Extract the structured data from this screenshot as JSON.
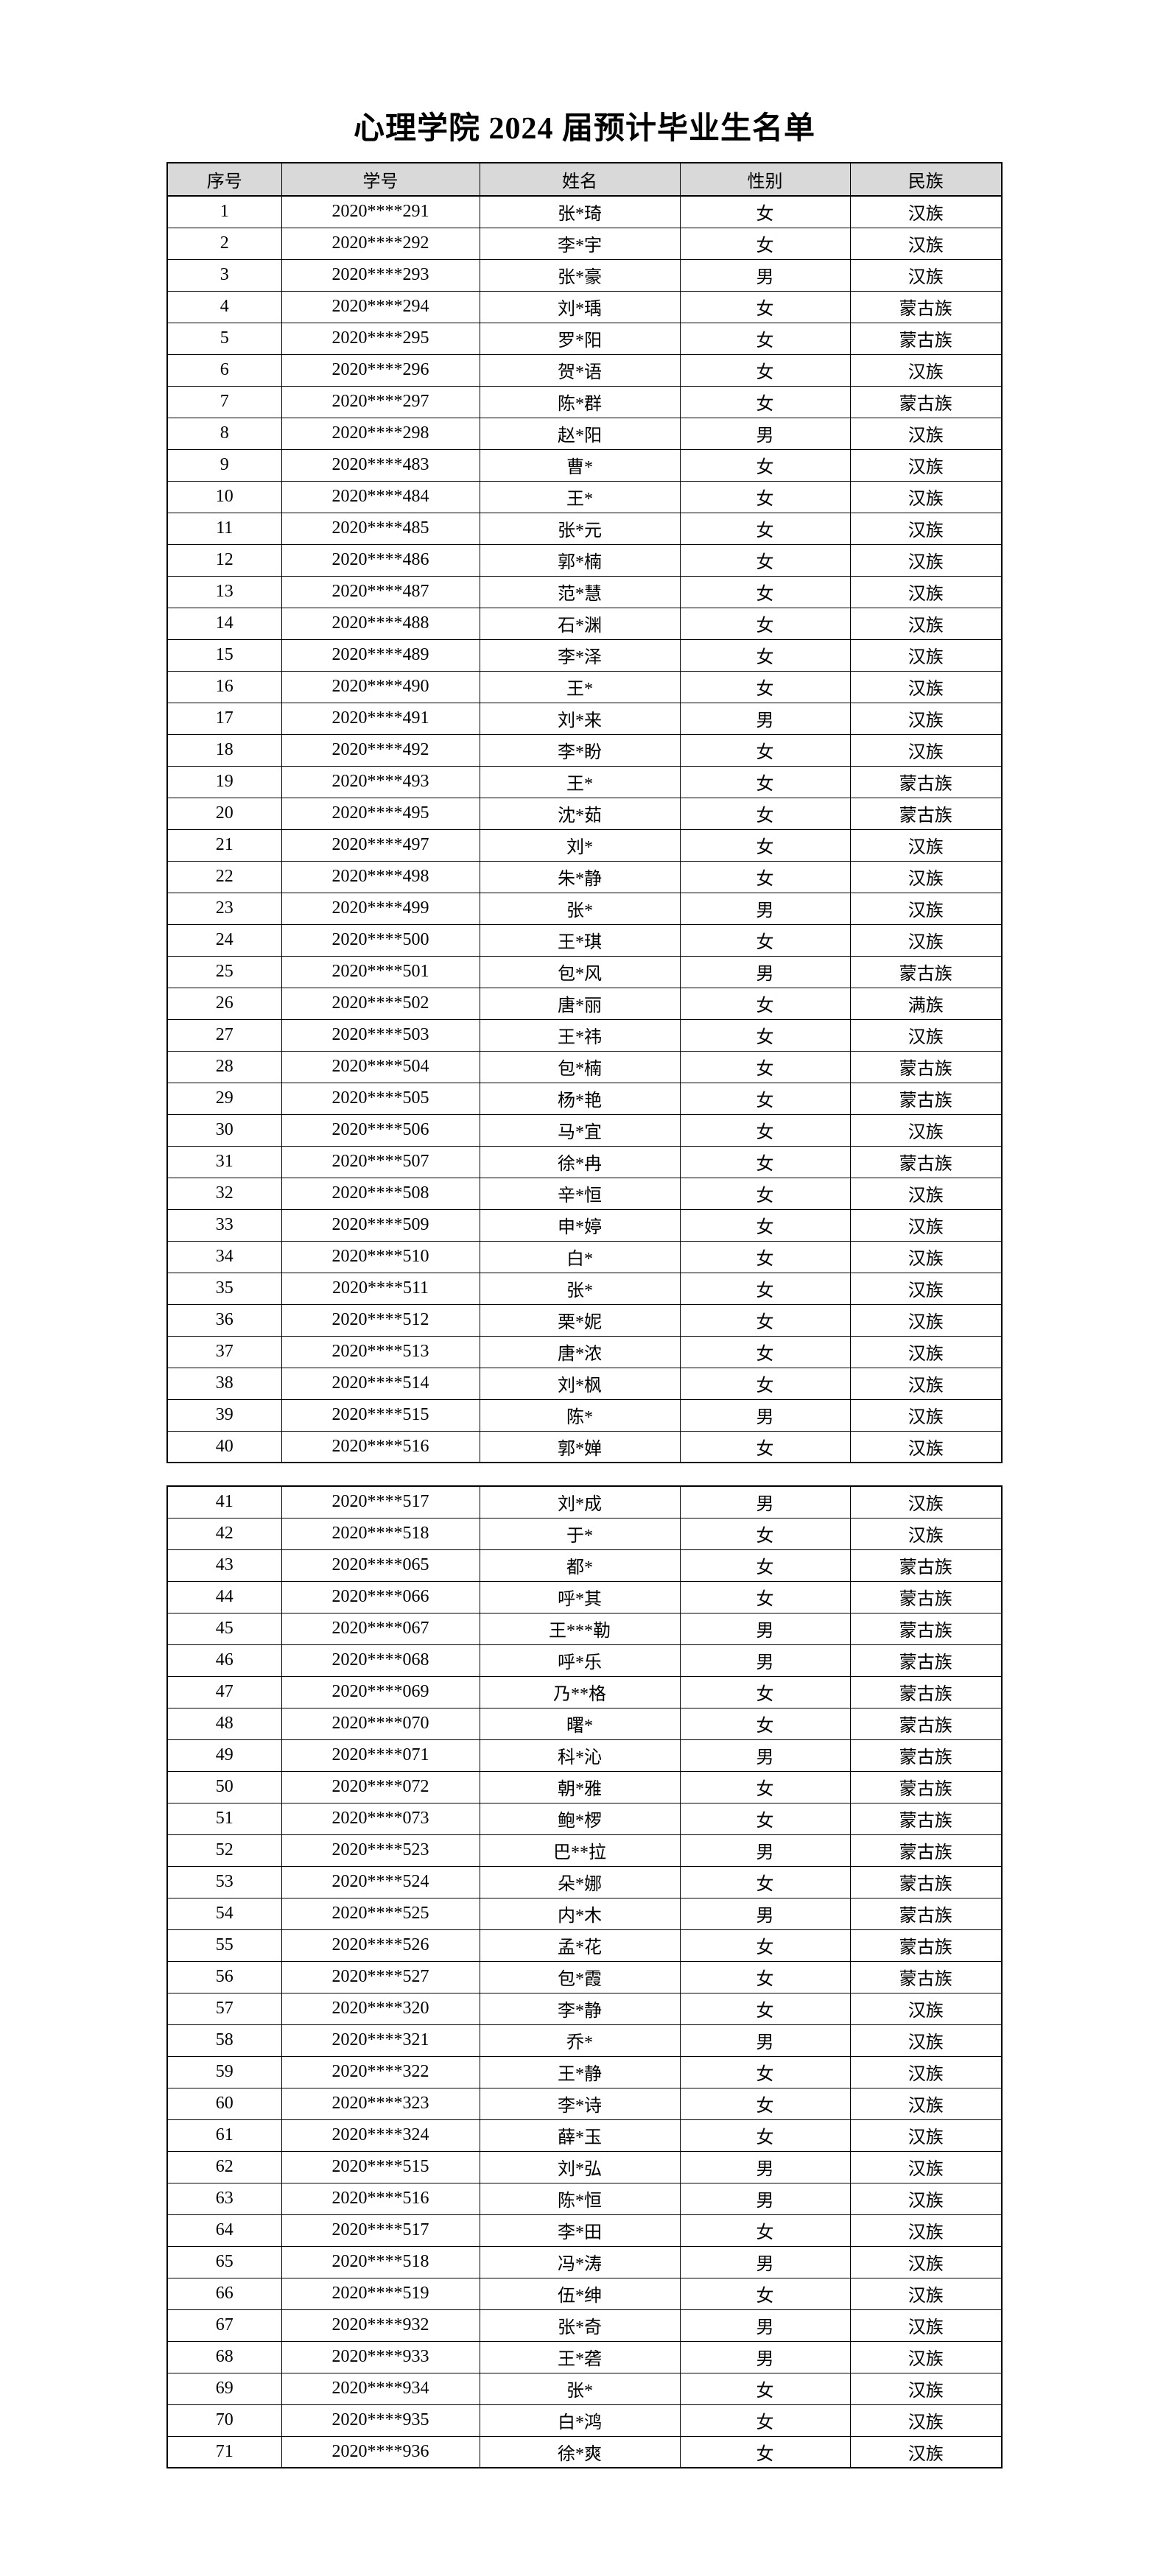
{
  "title": "心理学院 2024 届预计毕业生名单",
  "columns": [
    "序号",
    "学号",
    "姓名",
    "性别",
    "民族"
  ],
  "header_bg": "#d9d9d9",
  "tables": [
    {
      "rows": [
        [
          "1",
          "2020****291",
          "张*琦",
          "女",
          "汉族"
        ],
        [
          "2",
          "2020****292",
          "李*宇",
          "女",
          "汉族"
        ],
        [
          "3",
          "2020****293",
          "张*豪",
          "男",
          "汉族"
        ],
        [
          "4",
          "2020****294",
          "刘*瑀",
          "女",
          "蒙古族"
        ],
        [
          "5",
          "2020****295",
          "罗*阳",
          "女",
          "蒙古族"
        ],
        [
          "6",
          "2020****296",
          "贺*语",
          "女",
          "汉族"
        ],
        [
          "7",
          "2020****297",
          "陈*群",
          "女",
          "蒙古族"
        ],
        [
          "8",
          "2020****298",
          "赵*阳",
          "男",
          "汉族"
        ],
        [
          "9",
          "2020****483",
          "曹*",
          "女",
          "汉族"
        ],
        [
          "10",
          "2020****484",
          "王*",
          "女",
          "汉族"
        ],
        [
          "11",
          "2020****485",
          "张*元",
          "女",
          "汉族"
        ],
        [
          "12",
          "2020****486",
          "郭*楠",
          "女",
          "汉族"
        ],
        [
          "13",
          "2020****487",
          "范*慧",
          "女",
          "汉族"
        ],
        [
          "14",
          "2020****488",
          "石*渊",
          "女",
          "汉族"
        ],
        [
          "15",
          "2020****489",
          "李*泽",
          "女",
          "汉族"
        ],
        [
          "16",
          "2020****490",
          "王*",
          "女",
          "汉族"
        ],
        [
          "17",
          "2020****491",
          "刘*来",
          "男",
          "汉族"
        ],
        [
          "18",
          "2020****492",
          "李*盼",
          "女",
          "汉族"
        ],
        [
          "19",
          "2020****493",
          "王*",
          "女",
          "蒙古族"
        ],
        [
          "20",
          "2020****495",
          "沈*茹",
          "女",
          "蒙古族"
        ],
        [
          "21",
          "2020****497",
          "刘*",
          "女",
          "汉族"
        ],
        [
          "22",
          "2020****498",
          "朱*静",
          "女",
          "汉族"
        ],
        [
          "23",
          "2020****499",
          "张*",
          "男",
          "汉族"
        ],
        [
          "24",
          "2020****500",
          "王*琪",
          "女",
          "汉族"
        ],
        [
          "25",
          "2020****501",
          "包*风",
          "男",
          "蒙古族"
        ],
        [
          "26",
          "2020****502",
          "唐*丽",
          "女",
          "满族"
        ],
        [
          "27",
          "2020****503",
          "王*祎",
          "女",
          "汉族"
        ],
        [
          "28",
          "2020****504",
          "包*楠",
          "女",
          "蒙古族"
        ],
        [
          "29",
          "2020****505",
          "杨*艳",
          "女",
          "蒙古族"
        ],
        [
          "30",
          "2020****506",
          "马*宜",
          "女",
          "汉族"
        ],
        [
          "31",
          "2020****507",
          "徐*冉",
          "女",
          "蒙古族"
        ],
        [
          "32",
          "2020****508",
          "辛*恒",
          "女",
          "汉族"
        ],
        [
          "33",
          "2020****509",
          "申*婷",
          "女",
          "汉族"
        ],
        [
          "34",
          "2020****510",
          "白*",
          "女",
          "汉族"
        ],
        [
          "35",
          "2020****511",
          "张*",
          "女",
          "汉族"
        ],
        [
          "36",
          "2020****512",
          "栗*妮",
          "女",
          "汉族"
        ],
        [
          "37",
          "2020****513",
          "唐*浓",
          "女",
          "汉族"
        ],
        [
          "38",
          "2020****514",
          "刘*枫",
          "女",
          "汉族"
        ],
        [
          "39",
          "2020****515",
          "陈*",
          "男",
          "汉族"
        ],
        [
          "40",
          "2020****516",
          "郭*婵",
          "女",
          "汉族"
        ]
      ]
    },
    {
      "rows": [
        [
          "41",
          "2020****517",
          "刘*成",
          "男",
          "汉族"
        ],
        [
          "42",
          "2020****518",
          "于*",
          "女",
          "汉族"
        ],
        [
          "43",
          "2020****065",
          "都*",
          "女",
          "蒙古族"
        ],
        [
          "44",
          "2020****066",
          "呼*其",
          "女",
          "蒙古族"
        ],
        [
          "45",
          "2020****067",
          "王***勒",
          "男",
          "蒙古族"
        ],
        [
          "46",
          "2020****068",
          "呼*乐",
          "男",
          "蒙古族"
        ],
        [
          "47",
          "2020****069",
          "乃**格",
          "女",
          "蒙古族"
        ],
        [
          "48",
          "2020****070",
          "曙*",
          "女",
          "蒙古族"
        ],
        [
          "49",
          "2020****071",
          "科*沁",
          "男",
          "蒙古族"
        ],
        [
          "50",
          "2020****072",
          "朝*雅",
          "女",
          "蒙古族"
        ],
        [
          "51",
          "2020****073",
          "鲍*椤",
          "女",
          "蒙古族"
        ],
        [
          "52",
          "2020****523",
          "巴**拉",
          "男",
          "蒙古族"
        ],
        [
          "53",
          "2020****524",
          "朵*娜",
          "女",
          "蒙古族"
        ],
        [
          "54",
          "2020****525",
          "内*木",
          "男",
          "蒙古族"
        ],
        [
          "55",
          "2020****526",
          "孟*花",
          "女",
          "蒙古族"
        ],
        [
          "56",
          "2020****527",
          "包*霞",
          "女",
          "蒙古族"
        ],
        [
          "57",
          "2020****320",
          "李*静",
          "女",
          "汉族"
        ],
        [
          "58",
          "2020****321",
          "乔*",
          "男",
          "汉族"
        ],
        [
          "59",
          "2020****322",
          "王*静",
          "女",
          "汉族"
        ],
        [
          "60",
          "2020****323",
          "李*诗",
          "女",
          "汉族"
        ],
        [
          "61",
          "2020****324",
          "薛*玉",
          "女",
          "汉族"
        ],
        [
          "62",
          "2020****515",
          "刘*弘",
          "男",
          "汉族"
        ],
        [
          "63",
          "2020****516",
          "陈*恒",
          "男",
          "汉族"
        ],
        [
          "64",
          "2020****517",
          "李*田",
          "女",
          "汉族"
        ],
        [
          "65",
          "2020****518",
          "冯*涛",
          "男",
          "汉族"
        ],
        [
          "66",
          "2020****519",
          "伍*绅",
          "女",
          "汉族"
        ],
        [
          "67",
          "2020****932",
          "张*奇",
          "男",
          "汉族"
        ],
        [
          "68",
          "2020****933",
          "王*砻",
          "男",
          "汉族"
        ],
        [
          "69",
          "2020****934",
          "张*",
          "女",
          "汉族"
        ],
        [
          "70",
          "2020****935",
          "白*鸿",
          "女",
          "汉族"
        ],
        [
          "71",
          "2020****936",
          "徐*爽",
          "女",
          "汉族"
        ]
      ]
    }
  ]
}
